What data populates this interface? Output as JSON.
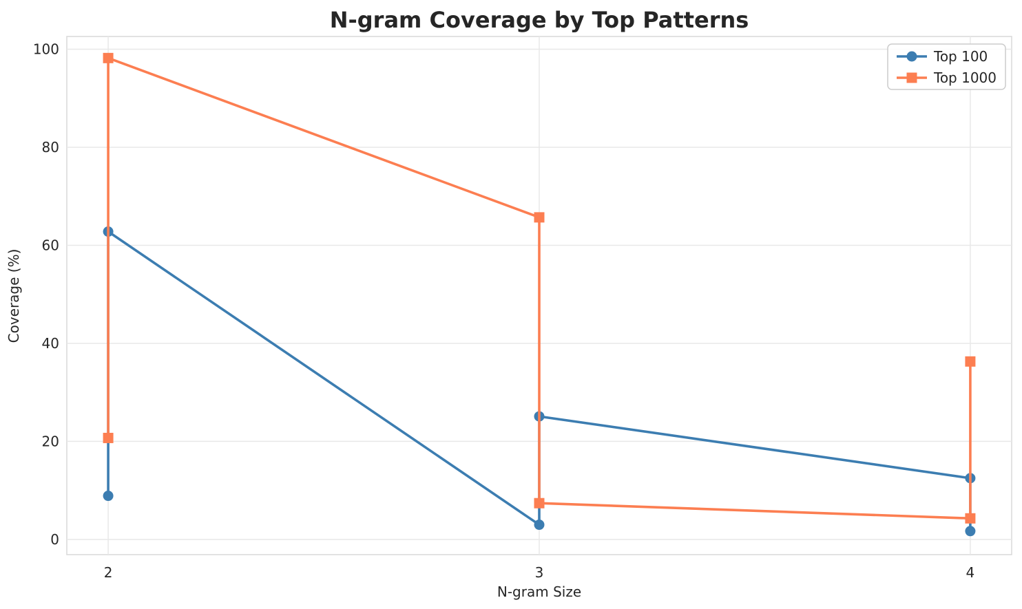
{
  "figure": {
    "background": "#ffffff",
    "text_color": "#262626",
    "grid_color": "#e8e8e8",
    "spine_color": "#d9d9d9",
    "legend_border_color": "#cccccc"
  },
  "chart_data": {
    "type": "line",
    "title": "N-gram Coverage by Top Patterns",
    "xlabel": "N-gram Size",
    "ylabel": "Coverage (%)",
    "x_ticks": [
      2,
      3,
      4
    ],
    "y_ticks": [
      0,
      20,
      40,
      60,
      80,
      100
    ],
    "xlim": [
      1.904,
      4.096
    ],
    "ylim": [
      -3.1,
      102.6
    ],
    "grid": true,
    "legend_position": "upper right",
    "series": [
      {
        "name": "Top 100",
        "color": "#3c7db1",
        "marker": "circle",
        "points": [
          [
            2,
            8.9
          ],
          [
            2,
            62.8
          ],
          [
            3,
            3.0
          ],
          [
            3,
            25.1
          ],
          [
            4,
            12.5
          ],
          [
            4,
            1.7
          ]
        ]
      },
      {
        "name": "Top 1000",
        "color": "#fc7e51",
        "marker": "square",
        "points": [
          [
            2,
            20.7
          ],
          [
            2,
            98.2
          ],
          [
            3,
            65.7
          ],
          [
            3,
            7.4
          ],
          [
            4,
            4.3
          ],
          [
            4,
            36.3
          ]
        ]
      }
    ]
  }
}
